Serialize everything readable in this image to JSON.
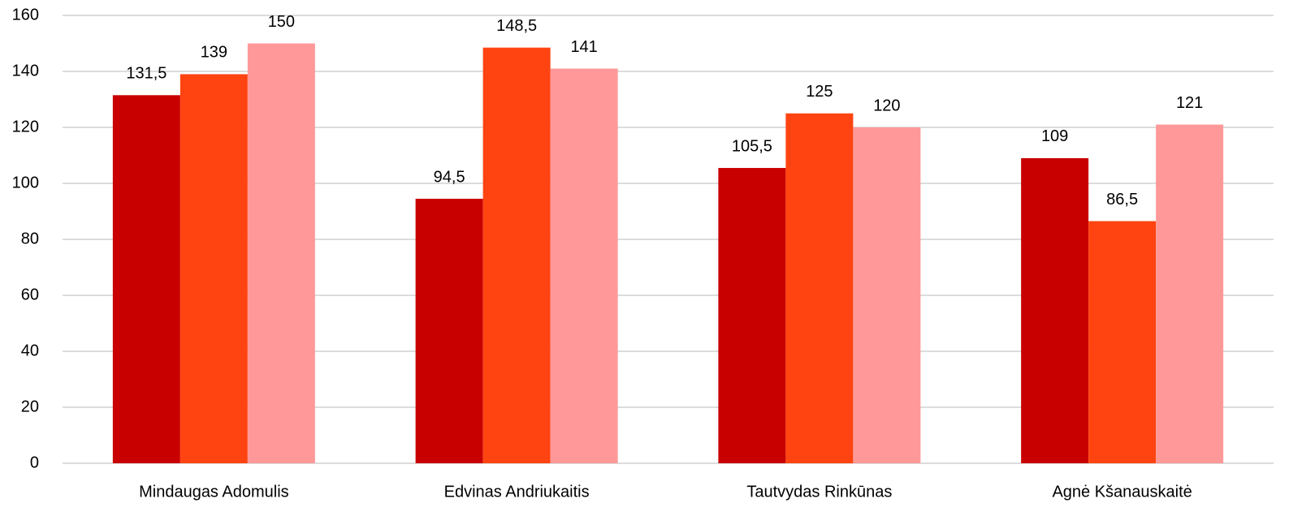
{
  "chart_data": {
    "type": "bar",
    "categories": [
      "Mindaugas Adomulis",
      "Edvinas Andriukaitis",
      "Tautvydas Rinkūnas",
      "Agnė Kšanauskaitė"
    ],
    "series": [
      {
        "color": "#c80000",
        "values": [
          131.5,
          94.5,
          105.5,
          109
        ],
        "value_labels": [
          "131,5",
          "94,5",
          "105,5",
          "109"
        ]
      },
      {
        "color": "#ff4411",
        "values": [
          139,
          148.5,
          125,
          86.5
        ],
        "value_labels": [
          "139",
          "148,5",
          "125",
          "86,5"
        ]
      },
      {
        "color": "#ff9999",
        "values": [
          150,
          141,
          120,
          121
        ],
        "value_labels": [
          "150",
          "141",
          "120",
          "121"
        ]
      }
    ],
    "ylim": [
      0,
      160
    ],
    "yticks": [
      0,
      20,
      40,
      60,
      80,
      100,
      120,
      140,
      160
    ],
    "grid": true
  }
}
